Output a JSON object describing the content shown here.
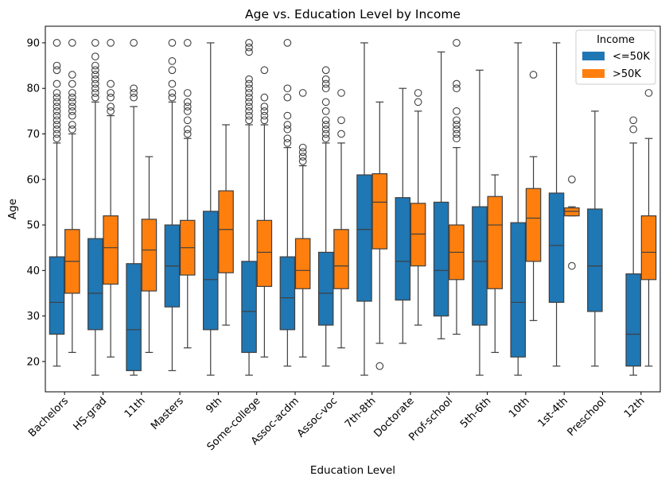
{
  "chart_data": {
    "type": "box",
    "title": "Age vs. Education Level by Income",
    "xlabel": "Education Level",
    "ylabel": "Age",
    "ylim": [
      13.35,
      93.65
    ],
    "yticks": [
      20,
      30,
      40,
      50,
      60,
      70,
      80,
      90
    ],
    "categories": [
      "Bachelors",
      "HS-grad",
      "11th",
      "Masters",
      "9th",
      "Some-college",
      "Assoc-acdm",
      "Assoc-voc",
      "7th-8th",
      "Doctorate",
      "Prof-school",
      "5th-6th",
      "10th",
      "1st-4th",
      "Preschool",
      "12th"
    ],
    "legend": {
      "title": "Income",
      "placement": "top-right"
    },
    "series": [
      {
        "name": "<=50K",
        "color": "#1f77b4",
        "boxes": [
          {
            "whislo": 19,
            "q1": 26,
            "med": 33,
            "q3": 43,
            "whishi": 68,
            "fliers": [
              69,
              70,
              71,
              72,
              73,
              74,
              75,
              76,
              77,
              78,
              79,
              81,
              84,
              85,
              90
            ]
          },
          {
            "whislo": 17,
            "q1": 27,
            "med": 35,
            "q3": 47,
            "whishi": 77,
            "fliers": [
              78,
              79,
              80,
              81,
              82,
              83,
              84,
              85,
              87,
              90
            ]
          },
          {
            "whislo": 17,
            "q1": 18,
            "med": 27,
            "q3": 41.5,
            "whishi": 76,
            "fliers": [
              78,
              79,
              80,
              90
            ]
          },
          {
            "whislo": 18,
            "q1": 32,
            "med": 41,
            "q3": 50,
            "whishi": 77,
            "fliers": [
              78,
              79,
              81,
              84,
              86,
              90
            ]
          },
          {
            "whislo": 17,
            "q1": 27,
            "med": 38,
            "q3": 53,
            "whishi": 90,
            "fliers": []
          },
          {
            "whislo": 17,
            "q1": 22,
            "med": 31,
            "q3": 42,
            "whishi": 72,
            "fliers": [
              73,
              74,
              75,
              76,
              77,
              78,
              79,
              80,
              81,
              82,
              88,
              89,
              90
            ]
          },
          {
            "whislo": 19,
            "q1": 27,
            "med": 34,
            "q3": 43,
            "whishi": 67,
            "fliers": [
              68,
              69,
              71,
              72,
              74,
              78,
              80,
              90
            ]
          },
          {
            "whislo": 19,
            "q1": 28,
            "med": 35,
            "q3": 44,
            "whishi": 68,
            "fliers": [
              69,
              70,
              71,
              72,
              73,
              75,
              77,
              80,
              81,
              82,
              84
            ]
          },
          {
            "whislo": 17,
            "q1": 33.25,
            "med": 49,
            "q3": 61,
            "whishi": 90,
            "fliers": []
          },
          {
            "whislo": 24,
            "q1": 33.5,
            "med": 42,
            "q3": 56,
            "whishi": 80,
            "fliers": []
          },
          {
            "whislo": 25,
            "q1": 30,
            "med": 40,
            "q3": 55,
            "whishi": 88,
            "fliers": []
          },
          {
            "whislo": 17,
            "q1": 28,
            "med": 42,
            "q3": 54,
            "whishi": 84,
            "fliers": []
          },
          {
            "whislo": 17,
            "q1": 21,
            "med": 33,
            "q3": 50.5,
            "whishi": 90,
            "fliers": []
          },
          {
            "whislo": 19,
            "q1": 33,
            "med": 45.5,
            "q3": 57,
            "whishi": 90,
            "fliers": []
          },
          {
            "whislo": 19,
            "q1": 31,
            "med": 41,
            "q3": 53.5,
            "whishi": 75,
            "fliers": []
          },
          {
            "whislo": 17,
            "q1": 19,
            "med": 26,
            "q3": 39.25,
            "whishi": 68,
            "fliers": [
              71,
              73
            ]
          }
        ]
      },
      {
        "name": ">50K",
        "color": "#ff7f0e",
        "boxes": [
          {
            "whislo": 22,
            "q1": 35,
            "med": 42,
            "q3": 49,
            "whishi": 70,
            "fliers": [
              71,
              72,
              74,
              75,
              76,
              77,
              78,
              79,
              81,
              83,
              90
            ]
          },
          {
            "whislo": 21,
            "q1": 37,
            "med": 45,
            "q3": 52,
            "whishi": 74,
            "fliers": [
              75,
              76,
              78,
              79,
              81,
              90
            ]
          },
          {
            "whislo": 22,
            "q1": 35.5,
            "med": 44.5,
            "q3": 51.25,
            "whishi": 65,
            "fliers": []
          },
          {
            "whislo": 23,
            "q1": 39,
            "med": 45,
            "q3": 51,
            "whishi": 69,
            "fliers": [
              70,
              71,
              73,
              75,
              76,
              77,
              79,
              90
            ]
          },
          {
            "whislo": 28,
            "q1": 39.5,
            "med": 49,
            "q3": 57.5,
            "whishi": 72,
            "fliers": []
          },
          {
            "whislo": 21,
            "q1": 36.5,
            "med": 44,
            "q3": 51,
            "whishi": 72,
            "fliers": [
              73,
              74,
              75,
              76,
              78,
              84
            ]
          },
          {
            "whislo": 21,
            "q1": 36,
            "med": 40,
            "q3": 47,
            "whishi": 63,
            "fliers": [
              64,
              65,
              66,
              67,
              79
            ]
          },
          {
            "whislo": 23,
            "q1": 36,
            "med": 41,
            "q3": 49,
            "whishi": 68,
            "fliers": [
              70,
              73,
              79
            ]
          },
          {
            "whislo": 24,
            "q1": 44.75,
            "med": 55,
            "q3": 61.25,
            "whishi": 77,
            "fliers": [
              19
            ]
          },
          {
            "whislo": 28,
            "q1": 41,
            "med": 48,
            "q3": 54.75,
            "whishi": 75,
            "fliers": [
              77,
              79
            ]
          },
          {
            "whislo": 26,
            "q1": 38,
            "med": 44,
            "q3": 50,
            "whishi": 67,
            "fliers": [
              69,
              70,
              71,
              72,
              73,
              75,
              80,
              81,
              90
            ]
          },
          {
            "whislo": 22,
            "q1": 36,
            "med": 50,
            "q3": 56.25,
            "whishi": 61,
            "fliers": []
          },
          {
            "whislo": 29,
            "q1": 42,
            "med": 51.5,
            "q3": 58,
            "whishi": 65,
            "fliers": [
              83
            ]
          },
          {
            "whislo": 52,
            "q1": 52,
            "med": 53,
            "q3": 53.75,
            "whishi": 54,
            "fliers": [
              41,
              60
            ]
          },
          null,
          {
            "whislo": 19,
            "q1": 38,
            "med": 44,
            "q3": 52,
            "whishi": 69,
            "fliers": [
              79
            ]
          }
        ]
      }
    ]
  }
}
